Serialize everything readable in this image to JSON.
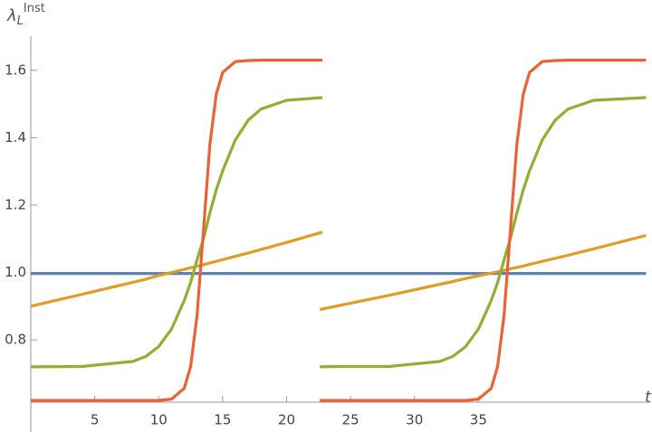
{
  "chart_data": {
    "type": "line",
    "ylabel": {
      "symbol": "λ",
      "sub": "L",
      "sup": "Inst"
    },
    "xlabel": "t",
    "x": [
      0,
      4,
      8,
      9,
      10,
      11,
      12,
      12.5,
      13,
      13.5,
      14,
      14.5,
      15,
      16,
      17,
      18,
      20,
      22.8,
      null,
      22.6,
      24,
      28,
      32,
      33,
      34,
      35,
      36,
      36.5,
      37,
      37.5,
      38,
      38.5,
      39,
      40,
      41,
      42,
      44,
      48.1
    ],
    "series": [
      {
        "color": "#5E81B5",
        "values": [
          0.997,
          0.997,
          0.997,
          0.997,
          0.997,
          0.997,
          0.997,
          0.997,
          0.997,
          0.997,
          0.997,
          0.997,
          0.997,
          0.997,
          0.997,
          0.997,
          0.997,
          0.997,
          null,
          0.997,
          0.997,
          0.997,
          0.997,
          0.997,
          0.997,
          0.997,
          0.997,
          0.997,
          0.997,
          0.997,
          0.997,
          0.997,
          0.997,
          0.997,
          0.997,
          0.997,
          0.997,
          0.997
        ]
      },
      {
        "color": "#E19C24",
        "values": [
          0.9,
          0.935,
          0.971,
          0.98,
          0.991,
          1.0,
          1.009,
          1.014,
          1.019,
          1.023,
          1.028,
          1.033,
          1.038,
          1.048,
          1.058,
          1.068,
          1.089,
          1.12,
          null,
          0.89,
          0.901,
          0.932,
          0.965,
          0.973,
          0.982,
          0.99,
          0.998,
          1.002,
          1.006,
          1.011,
          1.015,
          1.019,
          1.024,
          1.033,
          1.042,
          1.051,
          1.07,
          1.11
        ]
      },
      {
        "color": "#8FB032",
        "values": [
          0.72,
          0.721,
          0.736,
          0.751,
          0.78,
          0.832,
          0.917,
          0.97,
          1.037,
          1.1,
          1.176,
          1.245,
          1.302,
          1.394,
          1.452,
          1.485,
          1.511,
          1.519,
          null,
          0.72,
          0.721,
          0.721,
          0.736,
          0.751,
          0.78,
          0.832,
          0.917,
          0.97,
          1.037,
          1.1,
          1.176,
          1.245,
          1.302,
          1.394,
          1.452,
          1.485,
          1.511,
          1.519
        ]
      },
      {
        "color": "#EB6235",
        "values": [
          0.62,
          0.62,
          0.62,
          0.62,
          0.62,
          0.624,
          0.656,
          0.721,
          0.872,
          1.125,
          1.378,
          1.529,
          1.594,
          1.626,
          1.629,
          1.63,
          1.63,
          1.63,
          null,
          0.62,
          0.62,
          0.62,
          0.62,
          0.62,
          0.62,
          0.624,
          0.656,
          0.721,
          0.872,
          1.125,
          1.378,
          1.529,
          1.594,
          1.626,
          1.629,
          1.63,
          1.63,
          1.63
        ]
      }
    ],
    "xlim": [
      0,
      48.5
    ],
    "ylim": [
      0.615,
      1.68
    ],
    "xticks": [
      5,
      10,
      15,
      20,
      25,
      30,
      35
    ],
    "yticks": [
      0.8,
      {
        "value": 1,
        "label": "1.0"
      },
      1.2,
      1.4,
      1.6
    ]
  }
}
